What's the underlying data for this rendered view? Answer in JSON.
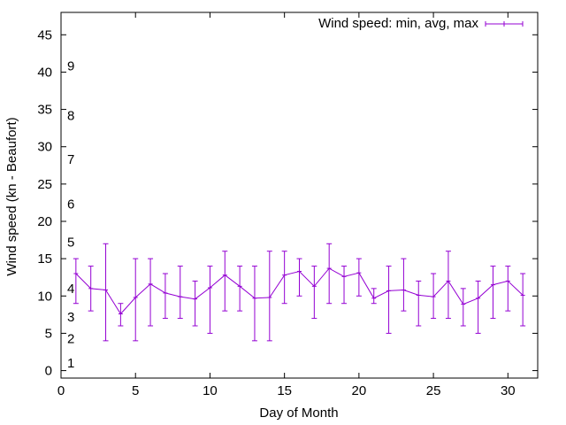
{
  "chart_data": {
    "type": "line",
    "title": "",
    "xlabel": "Day of Month",
    "ylabel": "Wind speed (kn - Beaufort)",
    "xlim": [
      0,
      32
    ],
    "ylim": [
      -1,
      48
    ],
    "xticks": [
      0,
      5,
      10,
      15,
      20,
      25,
      30
    ],
    "yticks": [
      0,
      5,
      10,
      15,
      20,
      25,
      30,
      35,
      40,
      45
    ],
    "grid": false,
    "legend_position": "top-right",
    "series_color": "#9400d3",
    "series": [
      {
        "name": "Wind speed: min, avg, max",
        "x": [
          1,
          2,
          3,
          4,
          5,
          6,
          7,
          8,
          9,
          10,
          11,
          12,
          13,
          14,
          15,
          16,
          17,
          18,
          19,
          20,
          21,
          22,
          23,
          24,
          25,
          26,
          27,
          28,
          29,
          30,
          31
        ],
        "avg": [
          13,
          11,
          10.8,
          7.6,
          9.8,
          11.6,
          10.4,
          9.9,
          9.6,
          11.1,
          12.8,
          11.3,
          9.7,
          9.8,
          12.8,
          13.3,
          11.3,
          13.7,
          12.6,
          13.1,
          9.7,
          10.7,
          10.8,
          10.1,
          9.9,
          12,
          8.9,
          9.7,
          11.5,
          12,
          10.1
        ],
        "min": [
          9,
          8,
          4,
          6,
          4,
          6,
          7,
          7,
          6,
          5,
          8,
          8,
          4,
          4,
          9,
          10,
          7,
          9,
          9,
          10,
          9,
          5,
          8,
          6,
          7,
          7,
          6,
          5,
          7,
          8,
          6
        ],
        "max": [
          15,
          14,
          17,
          9,
          15,
          15,
          13,
          14,
          12,
          14,
          16,
          14,
          14,
          16,
          16,
          15,
          14,
          17,
          14,
          15,
          11,
          14,
          15,
          12,
          13,
          16,
          11,
          12,
          14,
          14,
          13
        ]
      }
    ],
    "annotations": [
      {
        "text": "1",
        "y": 1
      },
      {
        "text": "2",
        "y": 4.3
      },
      {
        "text": "3",
        "y": 7.2
      },
      {
        "text": "4",
        "y": 11
      },
      {
        "text": "5",
        "y": 17.2
      },
      {
        "text": "6",
        "y": 22.3
      },
      {
        "text": "7",
        "y": 28.3
      },
      {
        "text": "8",
        "y": 34.2
      },
      {
        "text": "9",
        "y": 40.8
      }
    ]
  }
}
